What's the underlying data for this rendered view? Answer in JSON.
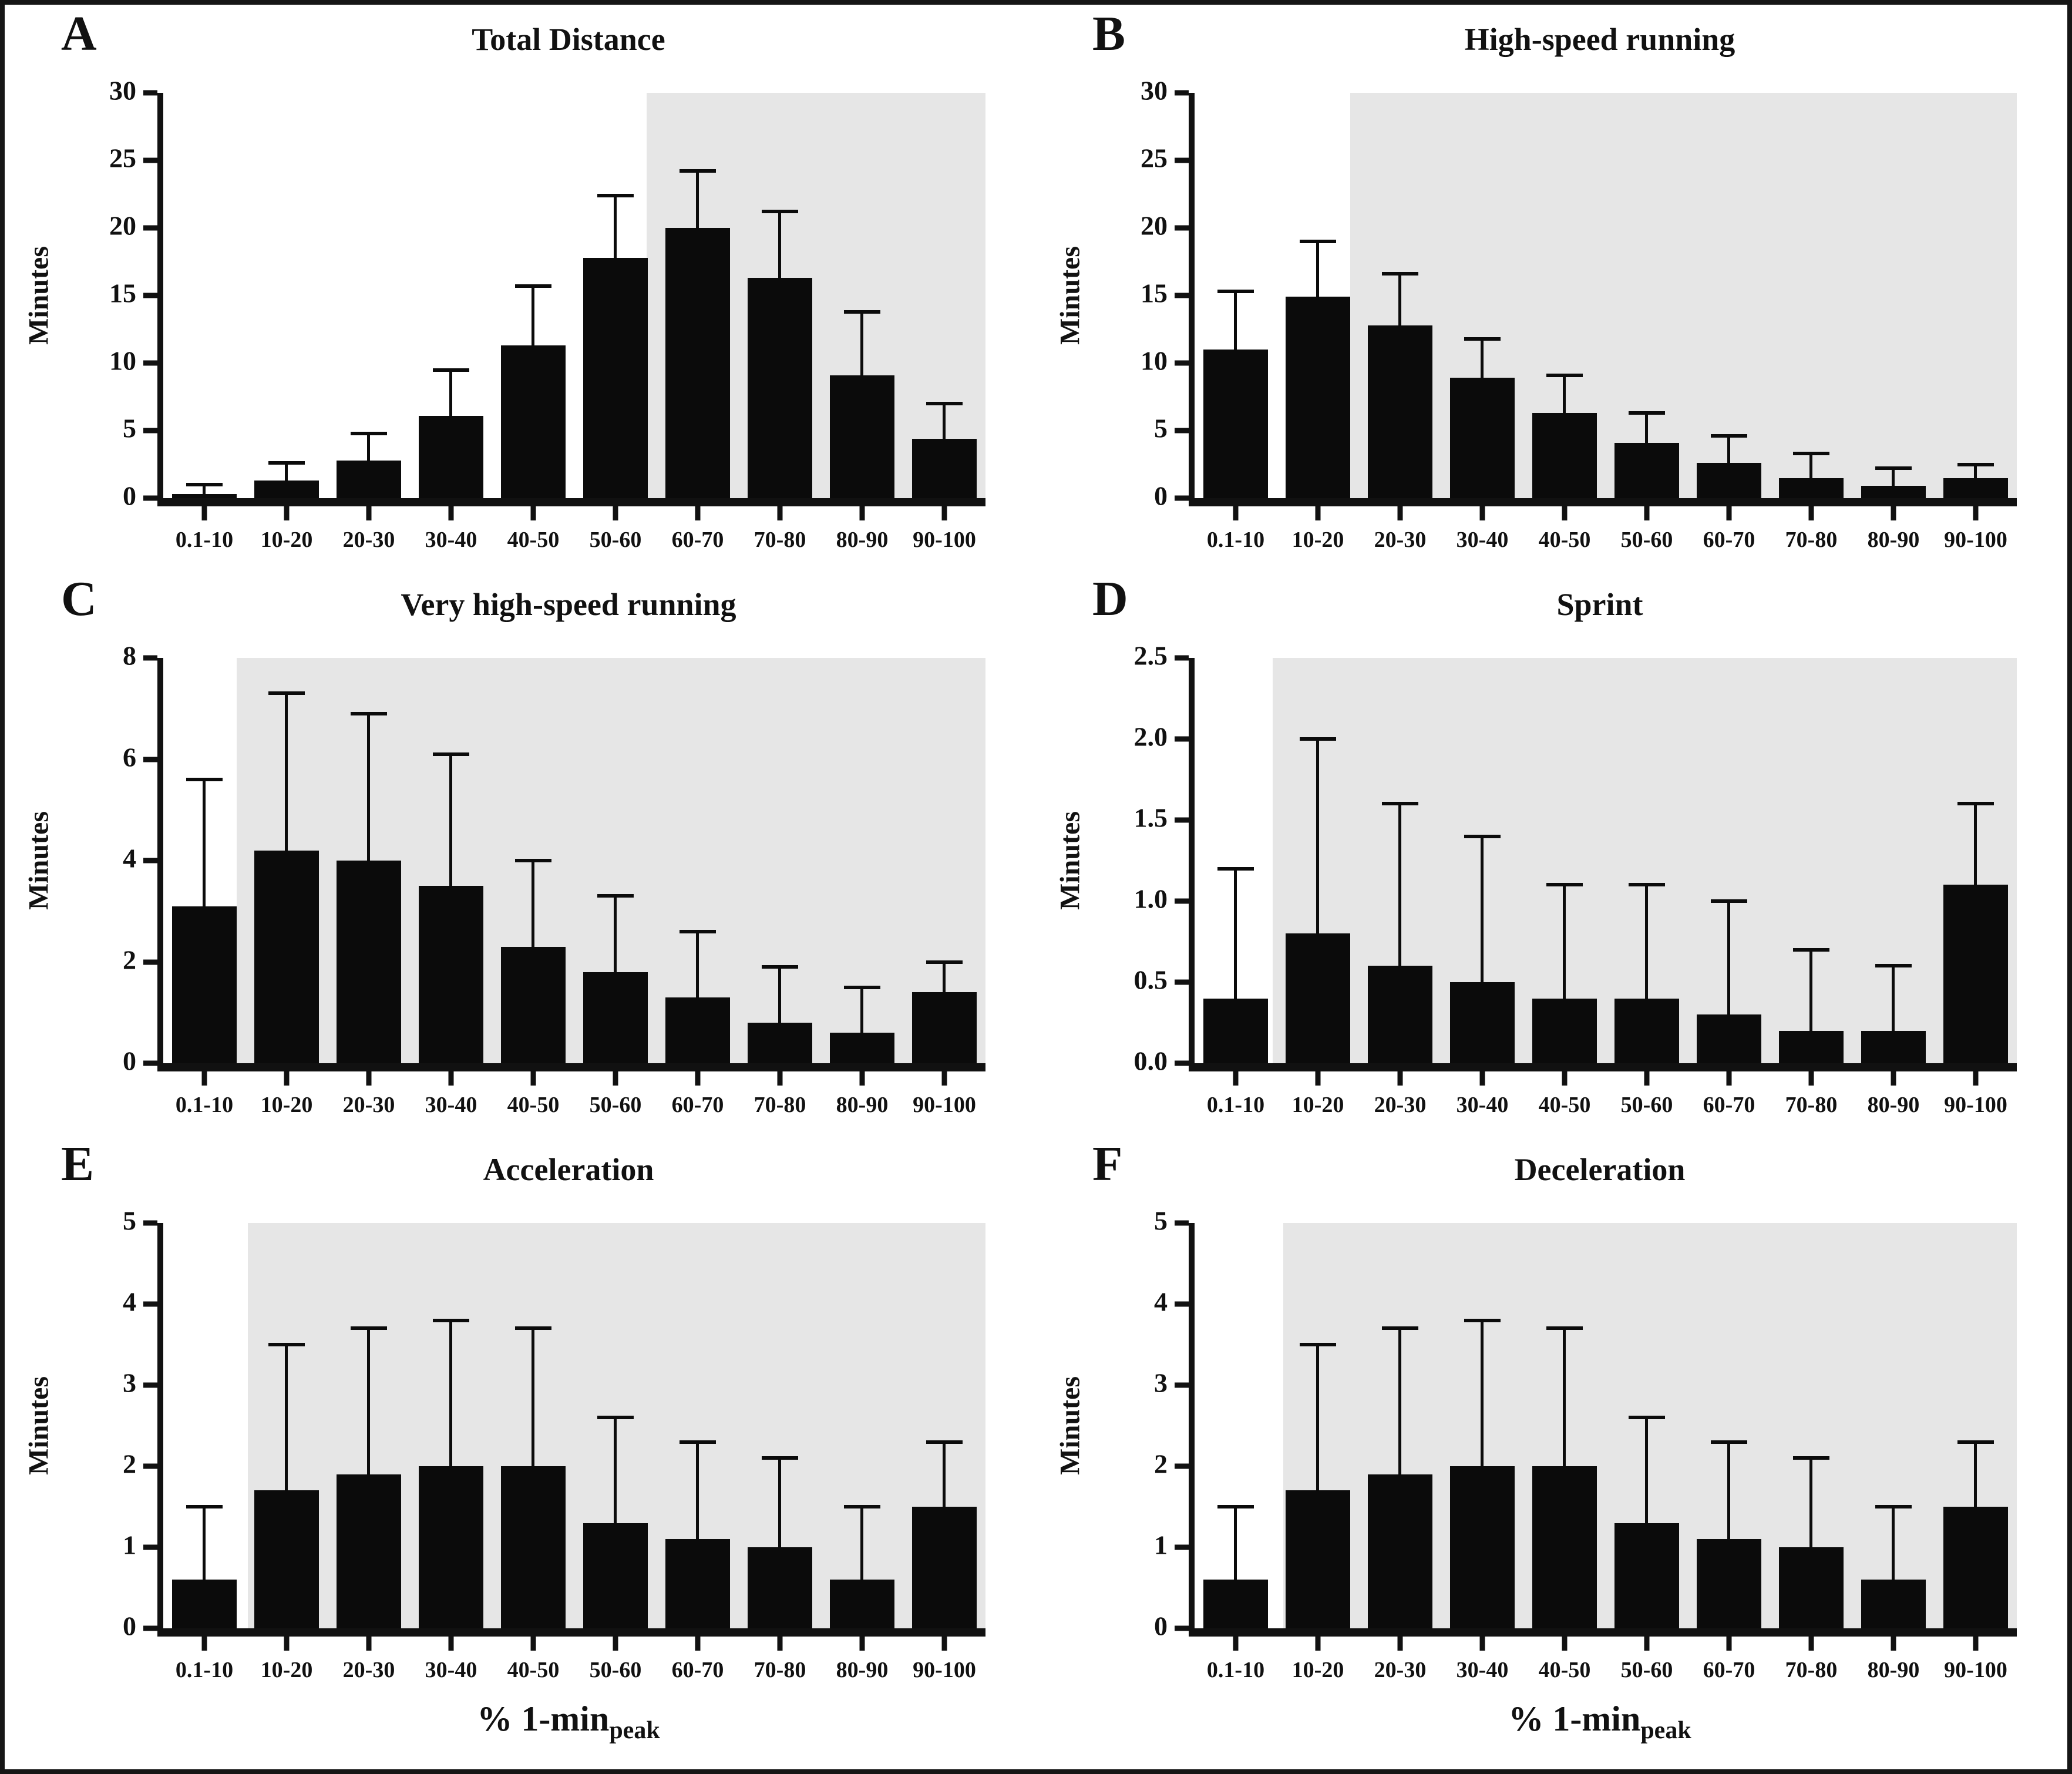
{
  "figure": {
    "background": "#ffffff",
    "frame_color": "#161616",
    "bar_color": "#0b0b0b",
    "shade_color": "#e6e6e6",
    "text_color": "#111111",
    "ylabel": "Minutes",
    "xlabel_main": "% 1-min",
    "xlabel_sub": "peak"
  },
  "categories": [
    "0.1-10",
    "10-20",
    "20-30",
    "30-40",
    "40-50",
    "50-60",
    "60-70",
    "70-80",
    "80-90",
    "90-100"
  ],
  "chart_data": [
    {
      "panel": "A",
      "type": "bar",
      "title": "Total Distance",
      "ylabel": "Minutes",
      "ylim": [
        0,
        30
      ],
      "ytick_labels": [
        "0",
        "5",
        "10",
        "15",
        "20",
        "25",
        "30"
      ],
      "categories": [
        "0.1-10",
        "10-20",
        "20-30",
        "30-40",
        "40-50",
        "50-60",
        "60-70",
        "70-80",
        "80-90",
        "90-100"
      ],
      "values": [
        0.3,
        1.3,
        2.8,
        6.1,
        11.3,
        17.8,
        20.0,
        16.3,
        9.1,
        4.4
      ],
      "error_upper": [
        1.0,
        2.6,
        4.8,
        9.5,
        15.7,
        22.4,
        24.2,
        21.2,
        13.8,
        7.0
      ],
      "error_bars": "upper whiskers only",
      "shade_start_frac": 0.588,
      "shade_covers": "60-70 to 90-100",
      "grid": false,
      "legend": "none",
      "has_xlabel": false
    },
    {
      "panel": "B",
      "type": "bar",
      "title": "High-speed running",
      "ylabel": "Minutes",
      "ylim": [
        0,
        30
      ],
      "ytick_labels": [
        "0",
        "5",
        "10",
        "15",
        "20",
        "25",
        "30"
      ],
      "categories": [
        "0.1-10",
        "10-20",
        "20-30",
        "30-40",
        "40-50",
        "50-60",
        "60-70",
        "70-80",
        "80-90",
        "90-100"
      ],
      "values": [
        11.0,
        14.9,
        12.8,
        8.9,
        6.3,
        4.1,
        2.6,
        1.5,
        0.9,
        1.5
      ],
      "error_upper": [
        15.3,
        19.0,
        16.6,
        11.8,
        9.1,
        6.3,
        4.6,
        3.3,
        2.2,
        2.5
      ],
      "error_bars": "upper whiskers only",
      "shade_start_frac": 0.189,
      "shade_covers": "20-30 to 90-100",
      "grid": false,
      "legend": "none",
      "has_xlabel": false
    },
    {
      "panel": "C",
      "type": "bar",
      "title": "Very high-speed running",
      "ylabel": "Minutes",
      "ylim": [
        0,
        8
      ],
      "ytick_labels": [
        "0",
        "2",
        "4",
        "6",
        "8"
      ],
      "categories": [
        "0.1-10",
        "10-20",
        "20-30",
        "30-40",
        "40-50",
        "50-60",
        "60-70",
        "70-80",
        "80-90",
        "90-100"
      ],
      "values": [
        3.1,
        4.2,
        4.0,
        3.5,
        2.3,
        1.8,
        1.3,
        0.8,
        0.6,
        1.4
      ],
      "error_upper": [
        5.6,
        7.3,
        6.9,
        6.1,
        4.0,
        3.3,
        2.6,
        1.9,
        1.5,
        2.0
      ],
      "error_bars": "upper whiskers only",
      "shade_start_frac": 0.089,
      "shade_covers": "10-20 to 90-100",
      "grid": false,
      "legend": "none",
      "has_xlabel": false
    },
    {
      "panel": "D",
      "type": "bar",
      "title": "Sprint",
      "ylabel": "Minutes",
      "ylim": [
        0,
        2.5
      ],
      "ytick_labels": [
        "0.0",
        "0.5",
        "1.0",
        "1.5",
        "2.0",
        "2.5"
      ],
      "categories": [
        "0.1-10",
        "10-20",
        "20-30",
        "30-40",
        "40-50",
        "50-60",
        "60-70",
        "70-80",
        "80-90",
        "90-100"
      ],
      "values": [
        0.4,
        0.8,
        0.6,
        0.5,
        0.4,
        0.4,
        0.3,
        0.2,
        0.2,
        1.1
      ],
      "error_upper": [
        1.2,
        2.0,
        1.6,
        1.4,
        1.1,
        1.1,
        1.0,
        0.7,
        0.6,
        1.6
      ],
      "error_bars": "upper whiskers only",
      "shade_start_frac": 0.095,
      "shade_covers": "10-20 to 90-100",
      "grid": false,
      "legend": "none",
      "has_xlabel": false
    },
    {
      "panel": "E",
      "type": "bar",
      "title": "Acceleration",
      "ylabel": "Minutes",
      "ylim": [
        0,
        5
      ],
      "ytick_labels": [
        "0",
        "1",
        "2",
        "3",
        "4",
        "5"
      ],
      "categories": [
        "0.1-10",
        "10-20",
        "20-30",
        "30-40",
        "40-50",
        "50-60",
        "60-70",
        "70-80",
        "80-90",
        "90-100"
      ],
      "values": [
        0.6,
        1.7,
        1.9,
        2.0,
        2.0,
        1.3,
        1.1,
        1.0,
        0.6,
        1.5
      ],
      "error_upper": [
        1.5,
        3.5,
        3.7,
        3.8,
        3.7,
        2.6,
        2.3,
        2.1,
        1.5,
        2.3
      ],
      "error_bars": "upper whiskers only",
      "shade_start_frac": 0.103,
      "shade_covers": "10-20 to 90-100",
      "grid": false,
      "legend": "none",
      "has_xlabel": true
    },
    {
      "panel": "F",
      "type": "bar",
      "title": "Deceleration",
      "ylabel": "Minutes",
      "ylim": [
        0,
        5
      ],
      "ytick_labels": [
        "0",
        "1",
        "2",
        "3",
        "4",
        "5"
      ],
      "categories": [
        "0.1-10",
        "10-20",
        "20-30",
        "30-40",
        "40-50",
        "50-60",
        "60-70",
        "70-80",
        "80-90",
        "90-100"
      ],
      "values": [
        0.6,
        1.7,
        1.9,
        2.0,
        2.0,
        1.3,
        1.1,
        1.0,
        0.6,
        1.5
      ],
      "error_upper": [
        1.5,
        3.5,
        3.7,
        3.8,
        3.7,
        2.6,
        2.3,
        2.1,
        1.5,
        2.3
      ],
      "error_bars": "upper whiskers only",
      "shade_start_frac": 0.108,
      "shade_covers": "10-20 to 90-100",
      "grid": false,
      "legend": "none",
      "has_xlabel": true
    }
  ]
}
